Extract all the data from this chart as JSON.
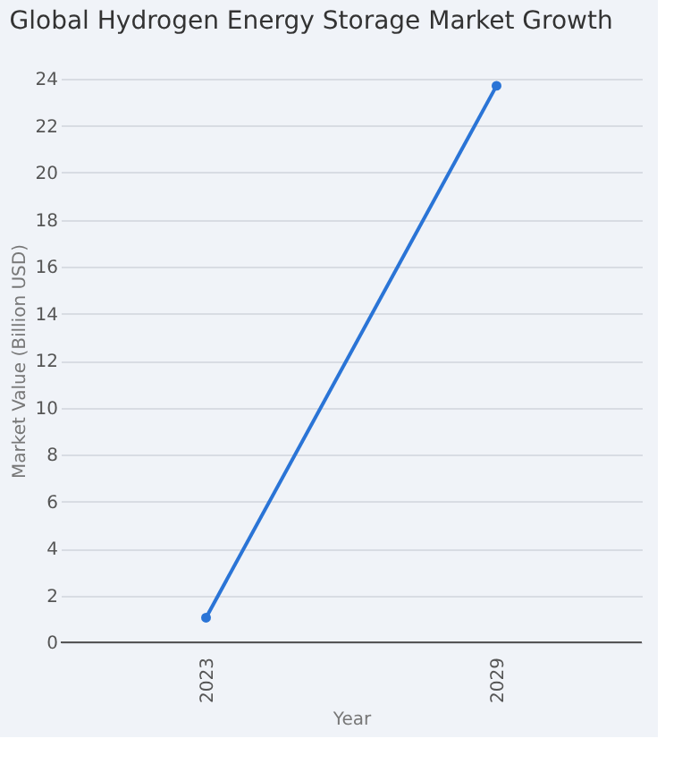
{
  "chart_data": {
    "type": "line",
    "title": "Global Hydrogen Energy Storage Market Growth",
    "xlabel": "Year",
    "ylabel": "Market Value (Billion USD)",
    "categories": [
      "2023",
      "2029"
    ],
    "series": [
      {
        "color": "#2a74d6",
        "values": [
          1.05,
          23.7
        ]
      }
    ],
    "ylim": [
      0,
      24
    ],
    "yticks": [
      0,
      2,
      4,
      6,
      8,
      10,
      12,
      14,
      16,
      18,
      20,
      22,
      24
    ],
    "grid": "y",
    "marker": "circle",
    "line_style": "solid"
  }
}
